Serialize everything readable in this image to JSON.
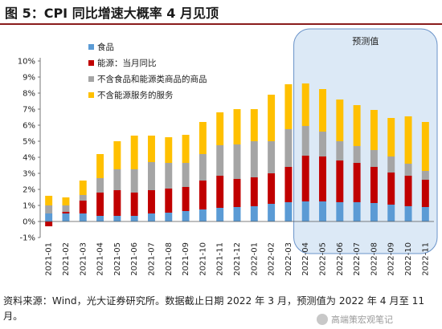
{
  "header": {
    "title": "图 5：CPI 同比增速大概率 4 月见顶"
  },
  "footer": {
    "source": "资料来源：Wind，光大证券研究所。数据截止日期 2022 年 3 月，预测值为 2022 年 4 月至 11 月。",
    "watermark": "高端策宏观笔记"
  },
  "chart_data": {
    "type": "bar",
    "stacked": true,
    "categories": [
      "2021-01",
      "2021-02",
      "2021-03",
      "2021-04",
      "2021-05",
      "2021-06",
      "2021-07",
      "2021-08",
      "2021-09",
      "2021-10",
      "2021-11",
      "2021-12",
      "2022-01",
      "2022-02",
      "2022-03",
      "2022-04",
      "2022-05",
      "2022-06",
      "2022-07",
      "2022-08",
      "2022-09",
      "2022-10",
      "2022-11"
    ],
    "series": [
      {
        "name": "食品",
        "color": "#5b9bd5",
        "values": [
          0.5,
          0.5,
          0.5,
          0.35,
          0.35,
          0.35,
          0.5,
          0.55,
          0.65,
          0.75,
          0.85,
          0.9,
          0.95,
          1.1,
          1.2,
          1.25,
          1.25,
          1.2,
          1.2,
          1.15,
          1.05,
          0.95,
          0.9
        ]
      },
      {
        "name": "能源：当月同比",
        "color": "#c00000",
        "values": [
          -0.3,
          0.1,
          0.8,
          1.45,
          1.6,
          1.45,
          1.45,
          1.5,
          1.5,
          1.8,
          2.0,
          1.75,
          1.8,
          1.9,
          2.2,
          2.85,
          2.8,
          2.6,
          2.45,
          2.25,
          2.0,
          1.9,
          1.7
        ]
      },
      {
        "name": "不含食品和能源类商品的商品",
        "color": "#a5a5a5",
        "values": [
          0.5,
          0.4,
          0.35,
          0.9,
          1.3,
          1.45,
          1.75,
          1.6,
          1.5,
          1.65,
          1.9,
          2.15,
          2.25,
          2.0,
          2.35,
          1.85,
          1.55,
          1.2,
          1.05,
          1.05,
          1.0,
          0.75,
          0.55
        ]
      },
      {
        "name": "不含能源服务的服务",
        "color": "#ffc000",
        "values": [
          0.6,
          0.5,
          0.9,
          1.5,
          1.75,
          2.1,
          1.65,
          1.6,
          1.75,
          2.0,
          2.05,
          2.2,
          2.0,
          2.9,
          2.8,
          2.65,
          2.65,
          2.6,
          2.55,
          2.5,
          2.4,
          2.95,
          3.05
        ]
      }
    ],
    "title": "",
    "xlabel": "",
    "ylabel": "",
    "ylim": [
      -1,
      10
    ],
    "yticks": [
      "-1%",
      "0%",
      "1%",
      "2%",
      "3%",
      "4%",
      "5%",
      "6%",
      "7%",
      "8%",
      "9%",
      "10%"
    ],
    "grid": false,
    "legend_position": "top-left",
    "annotation": {
      "label": "预测值",
      "from": "2022-04",
      "to": "2022-11",
      "fill": "#dce9f6",
      "stroke": "#6a93c9"
    }
  }
}
